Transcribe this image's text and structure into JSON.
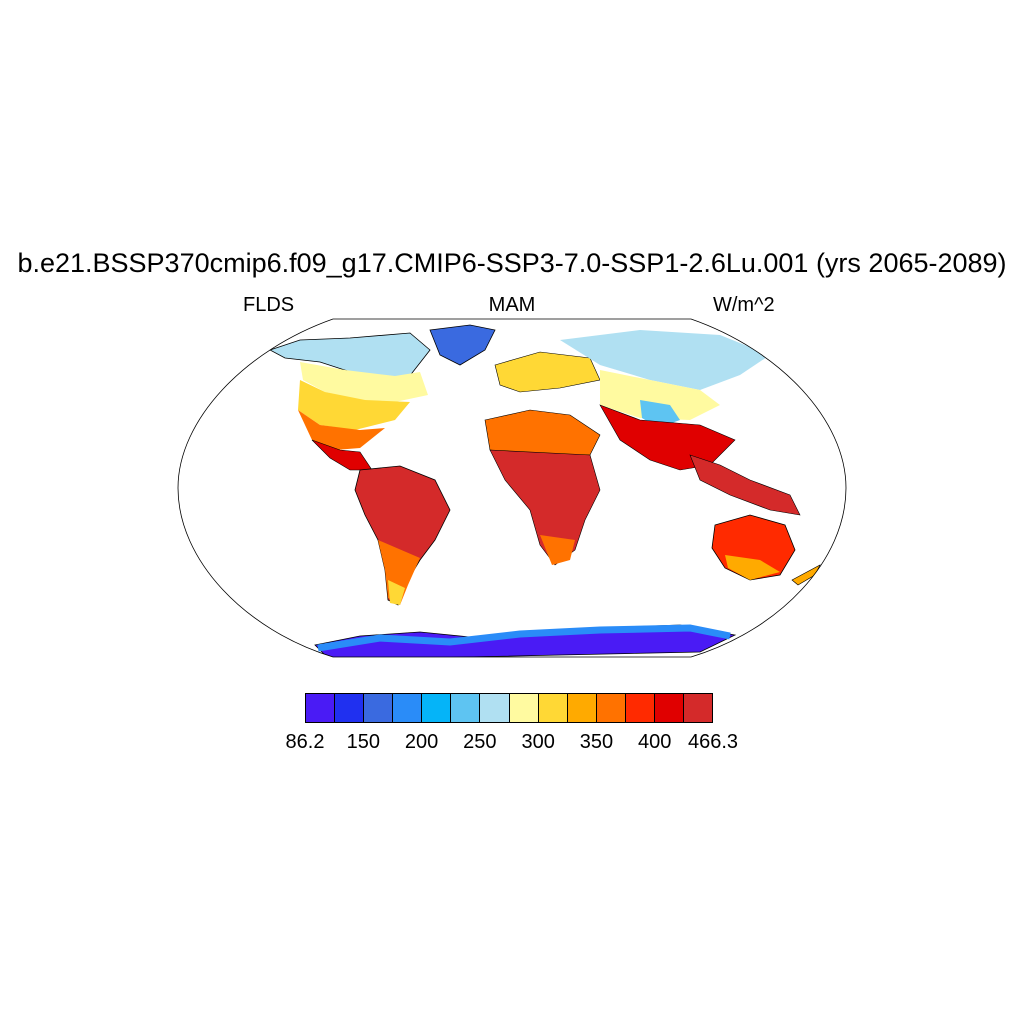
{
  "title": "b.e21.BSSP370cmip6.f09_g17.CMIP6-SSP3-7.0-SSP1-2.6Lu.001 (yrs 2065-2089)",
  "left_label": "FLDS",
  "center_label": "MAM",
  "right_label": "W/m^2",
  "colorbar": {
    "colors": [
      "#4a1bf5",
      "#2030f0",
      "#3a6ae0",
      "#2a8cf8",
      "#05b4f8",
      "#5ec4f2",
      "#b0e0f2",
      "#fffaa0",
      "#ffd835",
      "#ffaa00",
      "#ff7200",
      "#ff2a00",
      "#e00000",
      "#d42a2a"
    ],
    "labels": [
      "86.2",
      "150",
      "200",
      "250",
      "300",
      "350",
      "400",
      "466.3"
    ]
  }
}
